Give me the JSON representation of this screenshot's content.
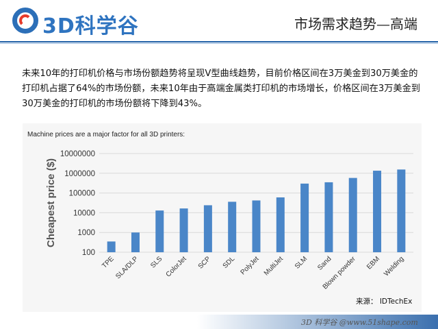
{
  "header": {
    "logo_text": "3D科学谷",
    "title": "市场需求趋势—高端"
  },
  "intro": "未来10年的打印机价格与市场份额趋势将呈现V型曲线趋势，目前价格区间在3万美金到30万美金的打印机占据了64%的市场份额，未来10年由于高端金属类打印机的市场增长，价格区间在3万美金到30万美金的打印机的市场份额将下降到43%。",
  "chart_data": {
    "type": "bar",
    "title": "Machine prices are a major factor for all 3D printers:",
    "xlabel": "",
    "ylabel": "Cheapest price ($)",
    "yscale": "log",
    "ylim": [
      100,
      10000000
    ],
    "y_ticks": [
      "10000000",
      "1000000",
      "100000",
      "10000",
      "1000",
      "100"
    ],
    "grid": true,
    "bar_color": "#4a86c8",
    "categories": [
      "TPE",
      "SLA/DLP",
      "SLS",
      "ColorJet",
      "SCP",
      "SDL",
      "PolyJet",
      "MultiJet",
      "SLM",
      "Sand",
      "Blown powder",
      "EBM",
      "Welding"
    ],
    "values": [
      350,
      1000,
      13000,
      16500,
      24000,
      36000,
      42000,
      60000,
      300000,
      350000,
      580000,
      1350000,
      1550000
    ]
  },
  "source": "来源： IDTechEx",
  "footer": "3D 科学谷 @www.51shape.com"
}
